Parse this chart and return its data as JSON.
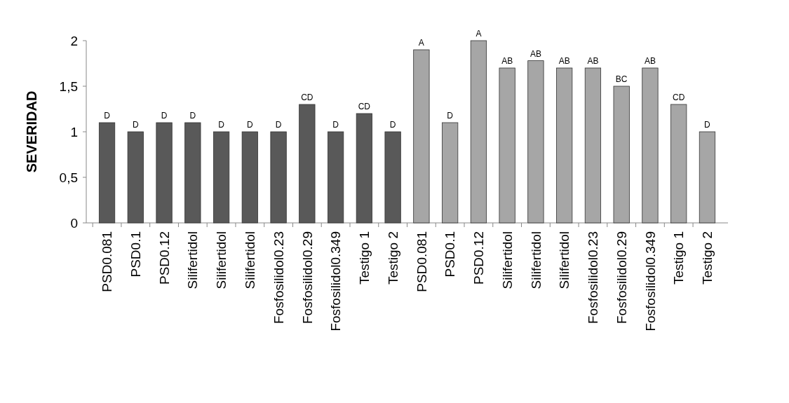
{
  "chart_data": {
    "type": "bar",
    "ylabel": "SEVERIDAD",
    "categories": [
      "PSD0.081",
      "PSD0.1",
      "PSD0.12",
      "Silifertidol",
      "Silifertidol",
      "Silifertidol",
      "Fosfosilidol0.23",
      "Fosfosilidol0.29",
      "Fosfosilidol0.349",
      "Testigo 1",
      "Testigo 2",
      "PSD0.081",
      "PSD0.1",
      "PSD0.12",
      "Silifertidol",
      "Silifertidol",
      "Silifertidol",
      "Fosfosilidol0.23",
      "Fosfosilidol0.29",
      "Fosfosilidol0.349",
      "Testigo 1",
      "Testigo 2"
    ],
    "values": [
      1.1,
      1.0,
      1.1,
      1.1,
      1.0,
      1.0,
      1.0,
      1.3,
      1.0,
      1.2,
      1.0,
      1.9,
      1.1,
      2.0,
      1.7,
      1.78,
      1.7,
      1.7,
      1.5,
      1.7,
      1.3,
      1.0
    ],
    "colors": [
      "#595959",
      "#595959",
      "#595959",
      "#595959",
      "#595959",
      "#595959",
      "#595959",
      "#595959",
      "#595959",
      "#595959",
      "#595959",
      "#a6a6a6",
      "#a6a6a6",
      "#a6a6a6",
      "#a6a6a6",
      "#a6a6a6",
      "#a6a6a6",
      "#a6a6a6",
      "#a6a6a6",
      "#a6a6a6",
      "#a6a6a6",
      "#a6a6a6"
    ],
    "value_labels": [
      "D",
      "D",
      "D",
      "D",
      "D",
      "D",
      "D",
      "CD",
      "D",
      "CD",
      "D",
      "A",
      "D",
      "A",
      "AB",
      "AB",
      "AB",
      "AB",
      "BC",
      "AB",
      "CD",
      "D"
    ],
    "ylim": [
      0,
      2
    ],
    "yticks": [
      0,
      {
        "value": 0.5,
        "label": "0,5"
      },
      1,
      {
        "value": 1.5,
        "label": "1,5"
      },
      2
    ],
    "grid": false
  }
}
